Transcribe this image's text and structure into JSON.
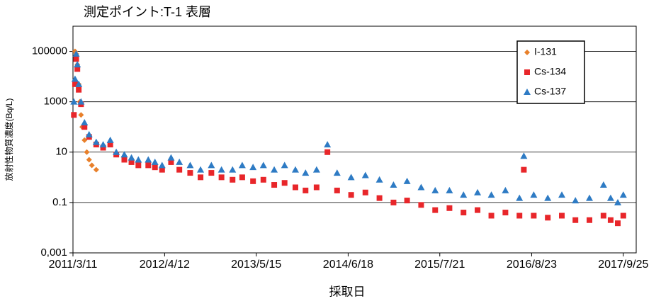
{
  "chart_data": {
    "type": "scatter",
    "title": "測定ポイント:T-1  表層",
    "x_label": "採取日",
    "y_label": "放射性物質濃度(Bq/L)",
    "log_y": true,
    "grid": true,
    "legend": "upper right",
    "ylim": [
      0.001,
      1000000
    ],
    "yticks": [
      {
        "value": 0.001,
        "label": "0,001"
      },
      0.1,
      10,
      1000,
      100000
    ],
    "xlim": [
      "2011/3/11",
      "2017/11/20"
    ],
    "xticks": [
      "2011/3/11",
      "2012/4/12",
      "2013/5/15",
      "2014/6/18",
      "2015/7/21",
      "2016/8/23",
      "2017/9/25"
    ],
    "series": [
      {
        "name": "I-131",
        "color": "#e8802b",
        "marker": "diamond",
        "x": [
          "2011/3/20",
          "2011/3/25",
          "2011/3/30",
          "2011/4/5",
          "2011/4/10",
          "2011/4/15",
          "2011/4/20",
          "2011/4/30",
          "2011/5/10",
          "2011/5/20",
          "2011/6/1",
          "2011/6/20"
        ],
        "values": [
          100000,
          80000,
          30000,
          5000,
          1000,
          300,
          100,
          30,
          10,
          5,
          3,
          2
        ]
      },
      {
        "name": "Cs-134",
        "color": "#e8262a",
        "marker": "square",
        "x": [
          "2011/3/15",
          "2011/3/20",
          "2011/3/25",
          "2011/3/30",
          "2011/4/5",
          "2011/4/15",
          "2011/4/30",
          "2011/5/20",
          "2011/6/20",
          "2011/7/20",
          "2011/8/20",
          "2011/9/15",
          "2011/10/20",
          "2011/11/20",
          "2011/12/20",
          "2012/2/1",
          "2012/3/1",
          "2012/4/1",
          "2012/5/10",
          "2012/6/15",
          "2012/8/1",
          "2012/9/15",
          "2012/11/1",
          "2012/12/15",
          "2013/2/1",
          "2013/3/15",
          "2013/5/1",
          "2013/6/15",
          "2013/8/1",
          "2013/9/15",
          "2013/11/1",
          "2013/12/15",
          "2014/2/1",
          "2014/3/20",
          "2014/5/1",
          "2014/7/1",
          "2014/9/1",
          "2014/11/1",
          "2015/1/1",
          "2015/3/1",
          "2015/5/1",
          "2015/7/1",
          "2015/9/1",
          "2015/11/1",
          "2016/1/1",
          "2016/3/1",
          "2016/5/1",
          "2016/7/1",
          "2016/7/20",
          "2016/9/1",
          "2016/11/1",
          "2017/1/1",
          "2017/3/1",
          "2017/5/1",
          "2017/7/1",
          "2017/8/1",
          "2017/9/1",
          "2017/9/25"
        ],
        "values": [
          300,
          5000,
          50000,
          20000,
          3000,
          800,
          100,
          40,
          20,
          15,
          20,
          8,
          5,
          4,
          3,
          3,
          2.5,
          2,
          4,
          2,
          1.5,
          1,
          1.5,
          1,
          0.8,
          1,
          0.7,
          0.8,
          0.5,
          0.6,
          0.4,
          0.3,
          0.4,
          10,
          0.3,
          0.2,
          0.25,
          0.15,
          0.1,
          0.12,
          0.08,
          0.05,
          0.06,
          0.04,
          0.05,
          0.03,
          0.04,
          0.03,
          2,
          0.03,
          0.025,
          0.03,
          0.02,
          0.02,
          0.03,
          0.02,
          0.015,
          0.03
        ]
      },
      {
        "name": "Cs-137",
        "color": "#2e7bc4",
        "marker": "triangle",
        "x": [
          "2011/3/15",
          "2011/3/20",
          "2011/3/25",
          "2011/3/30",
          "2011/4/5",
          "2011/4/15",
          "2011/4/30",
          "2011/5/20",
          "2011/6/20",
          "2011/7/20",
          "2011/8/20",
          "2011/9/15",
          "2011/10/20",
          "2011/11/20",
          "2011/12/20",
          "2012/2/1",
          "2012/3/1",
          "2012/4/1",
          "2012/5/10",
          "2012/6/15",
          "2012/8/1",
          "2012/9/15",
          "2012/11/1",
          "2012/12/15",
          "2013/2/1",
          "2013/3/15",
          "2013/5/1",
          "2013/6/15",
          "2013/8/1",
          "2013/9/15",
          "2013/11/1",
          "2013/12/15",
          "2014/2/1",
          "2014/3/20",
          "2014/5/1",
          "2014/7/1",
          "2014/9/1",
          "2014/11/1",
          "2015/1/1",
          "2015/3/1",
          "2015/5/1",
          "2015/7/1",
          "2015/9/1",
          "2015/11/1",
          "2016/1/1",
          "2016/3/1",
          "2016/5/1",
          "2016/7/1",
          "2016/7/20",
          "2016/9/1",
          "2016/11/1",
          "2017/1/1",
          "2017/3/1",
          "2017/5/1",
          "2017/7/1",
          "2017/8/1",
          "2017/9/1",
          "2017/9/25"
        ],
        "values": [
          1000,
          8000,
          80000,
          30000,
          5000,
          1000,
          150,
          50,
          25,
          20,
          30,
          10,
          8,
          6,
          5,
          5,
          4,
          3,
          6,
          4,
          3,
          2,
          3,
          2,
          2,
          3,
          2.5,
          3,
          2,
          3,
          2,
          1.5,
          2,
          20,
          1.5,
          1,
          1.2,
          0.8,
          0.5,
          0.7,
          0.4,
          0.3,
          0.3,
          0.2,
          0.25,
          0.2,
          0.3,
          0.15,
          7,
          0.2,
          0.15,
          0.2,
          0.12,
          0.15,
          0.5,
          0.15,
          0.1,
          0.2
        ]
      }
    ]
  }
}
